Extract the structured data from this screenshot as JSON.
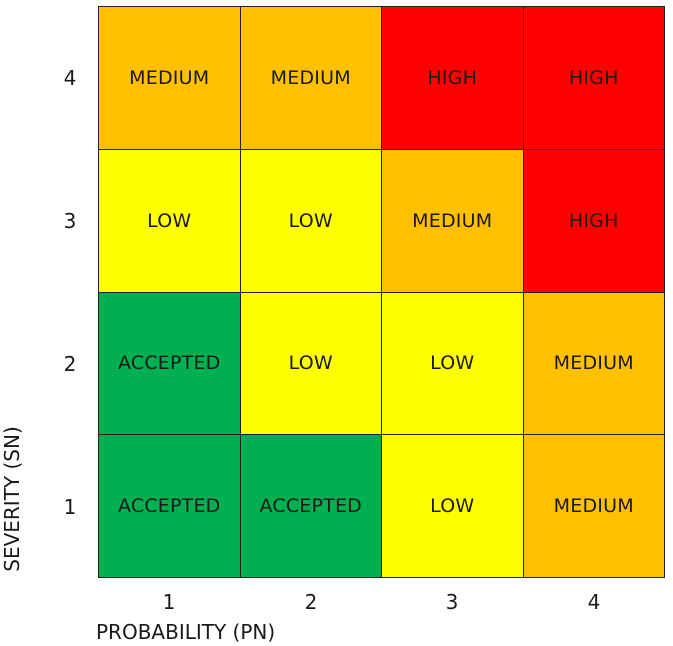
{
  "colors": {
    "ACCEPTED": "#00b050",
    "LOW": "#ffff00",
    "MEDIUM": "#ffc000",
    "HIGH": "#ff0000"
  },
  "axes": {
    "x_label": "PROBABILITY (PN)",
    "y_label": "SEVERITY (SN)",
    "x_ticks": [
      "1",
      "2",
      "3",
      "4"
    ],
    "y_ticks": [
      "4",
      "3",
      "2",
      "1"
    ]
  },
  "rows": [
    {
      "severity": "4",
      "cells": [
        "MEDIUM",
        "MEDIUM",
        "HIGH",
        "HIGH"
      ]
    },
    {
      "severity": "3",
      "cells": [
        "LOW",
        "LOW",
        "MEDIUM",
        "HIGH"
      ]
    },
    {
      "severity": "2",
      "cells": [
        "ACCEPTED",
        "LOW",
        "LOW",
        "MEDIUM"
      ]
    },
    {
      "severity": "1",
      "cells": [
        "ACCEPTED",
        "ACCEPTED",
        "LOW",
        "MEDIUM"
      ]
    }
  ]
}
